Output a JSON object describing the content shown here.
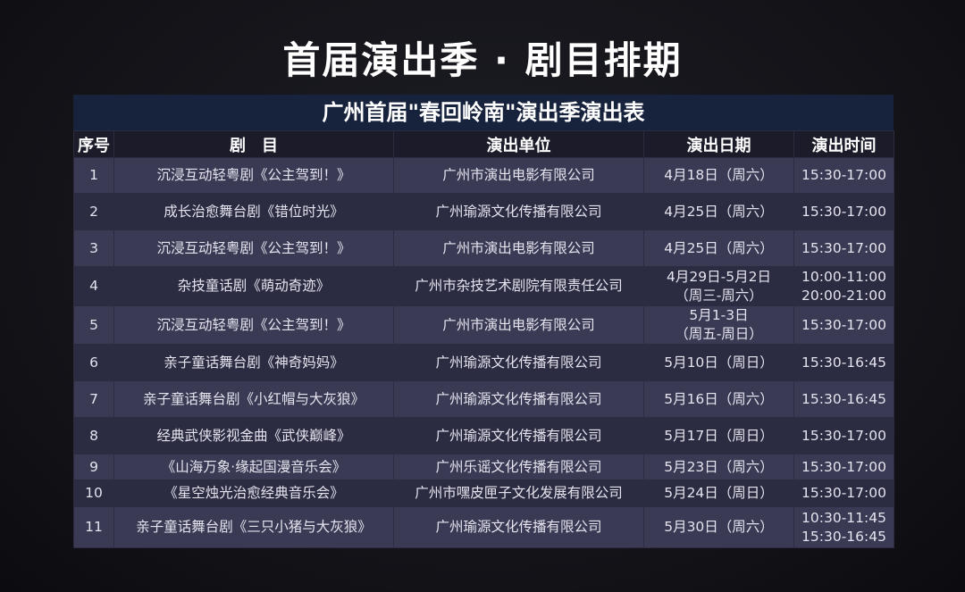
{
  "title": "首届演出季 · 剧目排期",
  "subtitle": "广州首届\"春回岭南\"演出季演出表",
  "headers": [
    "序号",
    "剧　目",
    "演出单位",
    "演出日期",
    "演出时间"
  ],
  "rows": [
    {
      "no": "1",
      "show": "沉浸互动轻粤剧《公主驾到！》",
      "org": "广州市演出电影有限公司",
      "date": "4月18日（周六）",
      "time": "15:30-17:00"
    },
    {
      "no": "2",
      "show": "成长治愈舞台剧《错位时光》",
      "org": "广州瑜源文化传播有限公司",
      "date": "4月25日（周六）",
      "time": "15:30-17:00"
    },
    {
      "no": "3",
      "show": "沉浸互动轻粤剧《公主驾到！》",
      "org": "广州市演出电影有限公司",
      "date": "4月25日（周六）",
      "time": "15:30-17:00"
    },
    {
      "no": "4",
      "show": "杂技童话剧《萌动奇迹》",
      "org": "广州市杂技艺术剧院有限责任公司",
      "date": "4月29日-5月2日\n（周三-周六）",
      "time": "10:00-11:00\n20:00-21:00"
    },
    {
      "no": "5",
      "show": "沉浸互动轻粤剧《公主驾到！》",
      "org": "广州市演出电影有限公司",
      "date": "5月1-3日\n（周五-周日）",
      "time": "15:30-17:00"
    },
    {
      "no": "6",
      "show": "亲子童话舞台剧《神奇妈妈》",
      "org": "广州瑜源文化传播有限公司",
      "date": "5月10日（周日）",
      "time": "15:30-16:45"
    },
    {
      "no": "7",
      "show": "亲子童话舞台剧《小红帽与大灰狼》",
      "org": "广州瑜源文化传播有限公司",
      "date": "5月16日（周六）",
      "time": "15:30-16:45"
    },
    {
      "no": "8",
      "show": "经典武侠影视金曲《武侠巅峰》",
      "org": "广州瑜源文化传播有限公司",
      "date": "5月17日（周日）",
      "time": "15:30-17:00"
    },
    {
      "no": "9",
      "show": "《山海万象·缘起国漫音乐会》",
      "org": "广州乐谣文化传播有限公司",
      "date": "5月23日（周六）",
      "time": "15:30-17:00"
    },
    {
      "no": "10",
      "show": "《星空烛光治愈经典音乐会》",
      "org": "广州市嘿皮匣子文化发展有限公司",
      "date": "5月24日（周日）",
      "time": "15:30-17:00"
    },
    {
      "no": "11",
      "show": "亲子童话舞台剧《三只小猪与大灰狼》",
      "org": "广州瑜源文化传播有限公司",
      "date": "5月30日（周六）",
      "time": "10:30-11:45\n15:30-16:45"
    }
  ]
}
